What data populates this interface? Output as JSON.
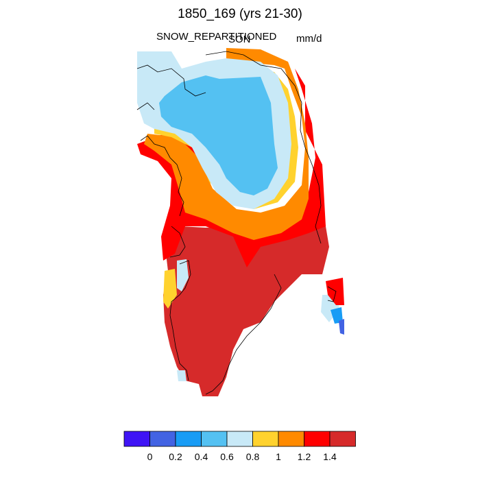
{
  "title": "1850_169 (yrs 21-30)",
  "variable": "SNOW_REPARTITIONED",
  "season": "SON",
  "units": "mm/d",
  "legend": {
    "colors": [
      "#3f14f5",
      "#4263e3",
      "#189cf5",
      "#54c1f2",
      "#c8e9f7",
      "#ffd22e",
      "#ff8a00",
      "#ff0000",
      "#d62a2a"
    ],
    "tick_labels": [
      "0",
      "0.2",
      "0.4",
      "0.6",
      "0.8",
      "1",
      "1.2",
      "1.4"
    ]
  },
  "chart_data": {
    "type": "heatmap",
    "title": "1850_169 (yrs 21-30)",
    "subtitle": "SON",
    "variable": "SNOW_REPARTITIONED",
    "units": "mm/d",
    "region": "Greenland",
    "contour_levels": [
      0,
      0.2,
      0.4,
      0.6,
      0.8,
      1,
      1.2,
      1.4
    ],
    "level_colors": [
      "#3f14f5",
      "#4263e3",
      "#189cf5",
      "#54c1f2",
      "#c8e9f7",
      "#ffd22e",
      "#ff8a00",
      "#ff0000",
      "#d62a2a"
    ],
    "spatial_pattern": {
      "north_interior": "0.4-0.6",
      "north_margin": "0.6-0.8",
      "central_band": "0.8-1.2",
      "south_and_southeast": ">1.4"
    }
  }
}
